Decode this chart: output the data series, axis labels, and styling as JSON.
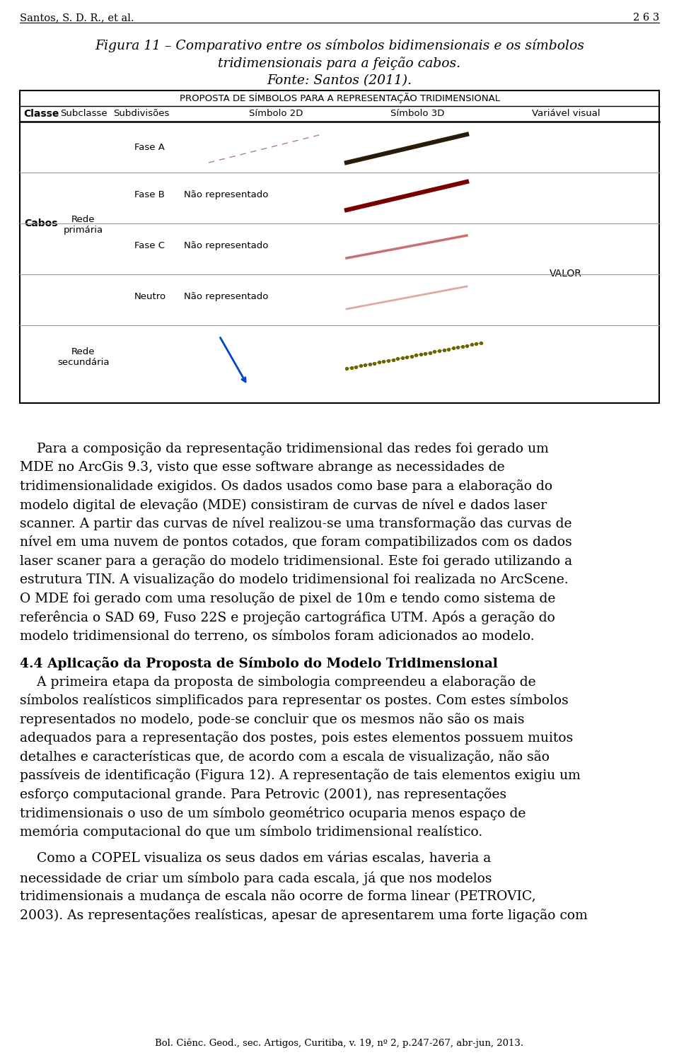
{
  "page_header_left": "Santos, S. D. R., et al.",
  "page_header_right": "2 6 3",
  "fig_title_line1": "Figura 11 – Comparativo entre os símbolos bidimensionais e os símbolos",
  "fig_title_line2": "tridimensionais para a feição cabos.",
  "fig_source": "Fonte: Santos (2011).",
  "table_title": "PROPOSTA DE SÍMBOLOS PARA A REPRESENTAÇÃO TRIDIMENSIONAL",
  "col_headers": [
    "Classe",
    "Subclasse",
    "Subdivisões",
    "Símbolo 2D",
    "Símbolo 3D",
    "Variável visual"
  ],
  "row_classe": "Cabos",
  "row_subclasse1": "Rede\nprimária",
  "row_subclasse2": "Rede\nsecundária",
  "fase_a": "Fase A",
  "fase_b": "Fase B",
  "fase_c": "Fase C",
  "neutro": "Neutro",
  "nao_rep": "Não representado",
  "valor": "VALOR",
  "body1_lines": [
    "    Para a composição da representação tridimensional das redes foi gerado um",
    "MDE no ArcGis 9.3, visto que esse software abrange as necessidades de",
    "tridimensionalidade exigidos. Os dados usados como base para a elaboração do",
    "modelo digital de elevação (MDE) consistiram de curvas de nível e dados laser",
    "scanner. A partir das curvas de nível realizou-se uma transformação das curvas de",
    "nível em uma nuvem de pontos cotados, que foram compatibilizados com os dados",
    "laser scaner para a geração do modelo tridimensional. Este foi gerado utilizando a",
    "estrutura TIN. A visualização do modelo tridimensional foi realizada no ArcScene.",
    "O MDE foi gerado com uma resolução de pixel de 10m e tendo como sistema de",
    "referência o SAD 69, Fuso 22S e projeção cartográfica UTM. Após a geração do",
    "modelo tridimensional do terreno, os símbolos foram adicionados ao modelo."
  ],
  "body1_italic_words": [
    "laser",
    "scanner"
  ],
  "section_title": "4.4 Aplicação da Proposta de Símbolo do Modelo Tridimensional",
  "body2_lines": [
    "    A primeira etapa da proposta de simbologia compreendeu a elaboração de",
    "símbolos realísticos simplificados para representar os postes. Com estes símbolos",
    "representados no modelo, pode-se concluir que os mesmos não são os mais",
    "adequados para a representação dos postes, pois estes elementos possuem muitos",
    "detalhes e características que, de acordo com a escala de visualização, não são",
    "passíveis de identificação (Figura 12). A representação de tais elementos exigiu um",
    "esforço computacional grande. Para Petrovic (2001), nas representações",
    "tridimensionais o uso de um símbolo geométrico ocuparia menos espaço de",
    "memória computacional do que um símbolo tridimensional realístico."
  ],
  "body3_lines": [
    "    Como a COPEL visualiza os seus dados em várias escalas, haveria a",
    "necessidade de criar um símbolo para cada escala, já que nos modelos",
    "tridimensionais a mudança de escala não ocorre de forma linear (PETROVIC,",
    "2003). As representações realísticas, apesar de apresentarem uma forte ligação com"
  ],
  "footer": "Bol. Ciênc. Geod., sec. Artigos, Curitiba, v. 19, nº 2, p.247-267, abr-jun, 2013.",
  "bg_color": "#ffffff"
}
